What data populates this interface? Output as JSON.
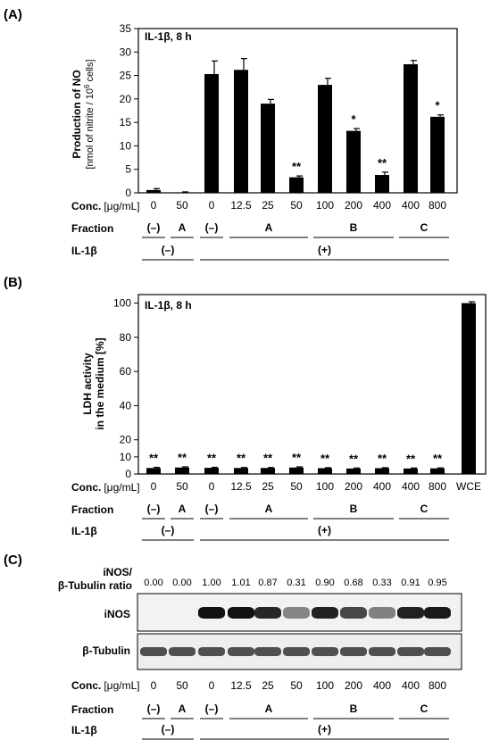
{
  "panel_labels": [
    "(A)",
    "(B)",
    "(C)"
  ],
  "colors": {
    "bar": "#000000",
    "axis": "#000000",
    "blot_band": "#111111",
    "blot_bg": "#f2f2f2"
  },
  "chart_data": [
    {
      "type": "bar",
      "annotation": "IL-1β, 8 h",
      "ylabel_line1": "Production of NO",
      "ylabel_line2_pre": "[nmol of nitrite / 10",
      "ylabel_line2_sup": "6",
      "ylabel_line2_post": " cells]",
      "ylim": [
        0,
        35
      ],
      "yticks": [
        0,
        5,
        10,
        15,
        20,
        25,
        30,
        35
      ],
      "categories": [
        "0",
        "50",
        "0",
        "12.5",
        "25",
        "50",
        "100",
        "200",
        "400",
        "400",
        "800"
      ],
      "values": [
        0.6,
        0.1,
        25.3,
        26.2,
        19.0,
        3.3,
        23.0,
        13.2,
        3.8,
        27.4,
        16.2
      ],
      "errors": [
        0.3,
        0.1,
        2.8,
        2.4,
        0.9,
        0.3,
        1.4,
        0.5,
        0.6,
        0.8,
        0.4
      ],
      "significance": [
        "",
        "",
        "",
        "",
        "",
        "**",
        "",
        "*",
        "**",
        "",
        "*"
      ]
    },
    {
      "type": "bar",
      "annotation": "IL-1β, 8 h",
      "ylabel_line1": "LDH activity",
      "ylabel_line2": "in the medium [%]",
      "ylim": [
        0,
        105
      ],
      "yticks": [
        0,
        10,
        20,
        40,
        60,
        80,
        100
      ],
      "categories": [
        "0",
        "50",
        "0",
        "12.5",
        "25",
        "50",
        "100",
        "200",
        "400",
        "400",
        "800",
        "WCE"
      ],
      "values": [
        3.5,
        3.8,
        3.6,
        3.5,
        3.5,
        3.8,
        3.4,
        3.2,
        3.4,
        3.2,
        3.3,
        100
      ],
      "errors": [
        0.4,
        0.4,
        0.3,
        0.3,
        0.3,
        0.4,
        0.3,
        0.3,
        0.3,
        0.3,
        0.3,
        0.8
      ],
      "significance": [
        "**",
        "**",
        "**",
        "**",
        "**",
        "**",
        "**",
        "**",
        "**",
        "**",
        "**",
        ""
      ]
    }
  ],
  "conc_label_bold": "Conc.",
  "conc_label_unit": "[μg/mL]",
  "fraction_label": "Fraction",
  "il1b_label": "IL-1β",
  "fraction_groups": [
    "(–)",
    "A",
    "(–)",
    "A",
    "B",
    "C"
  ],
  "il1b_groups": [
    "(–)",
    "(+)"
  ],
  "blot": {
    "ratio_label_line1": "iNOS/",
    "ratio_label_line2": "β-Tubulin ratio",
    "ratios": [
      "0.00",
      "0.00",
      "1.00",
      "1.01",
      "0.87",
      "0.31",
      "0.90",
      "0.68",
      "0.33",
      "0.91",
      "0.95"
    ],
    "inos_label": "iNOS",
    "tubulin_label": "β-Tubulin",
    "conc": [
      "0",
      "50",
      "0",
      "12.5",
      "25",
      "50",
      "100",
      "200",
      "400",
      "400",
      "800"
    ]
  }
}
